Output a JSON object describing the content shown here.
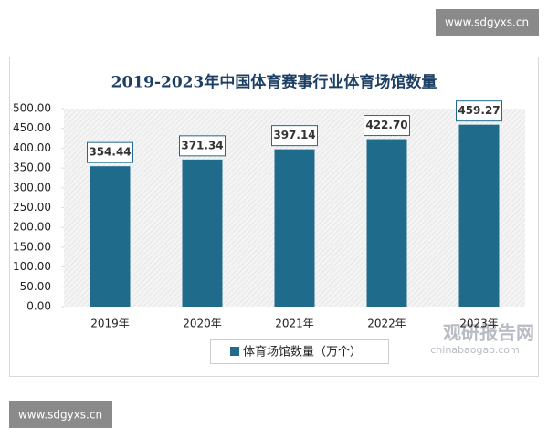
{
  "chart_data": {
    "type": "bar",
    "title": "2019-2023年中国体育赛事行业体育场馆数量",
    "categories": [
      "2019年",
      "2020年",
      "2021年",
      "2022年",
      "2023年"
    ],
    "series": [
      {
        "name": "体育场馆数量（万个）",
        "color": "#1f6b8c",
        "values": [
          354.44,
          371.34,
          397.14,
          422.7,
          459.27
        ],
        "value_labels": [
          "354.44",
          "371.34",
          "397.14",
          "422.70",
          "459.27"
        ]
      }
    ],
    "ylim": [
      0,
      500
    ],
    "yticks": [
      {
        "value": 0,
        "label": "0.00"
      },
      {
        "value": 50,
        "label": "50.00"
      },
      {
        "value": 100,
        "label": "100.00"
      },
      {
        "value": 150,
        "label": "150.00"
      },
      {
        "value": 200,
        "label": "200.00"
      },
      {
        "value": 250,
        "label": "250.00"
      },
      {
        "value": 300,
        "label": "300.00"
      },
      {
        "value": 350,
        "label": "350.00"
      },
      {
        "value": 400,
        "label": "400.00"
      },
      {
        "value": 450,
        "label": "450.00"
      },
      {
        "value": 500,
        "label": "500.00"
      }
    ],
    "legend": "bottom"
  },
  "watermarks": {
    "top": "www.sdgyxs.cn",
    "bottom": "www.sdgyxs.cn",
    "brand": "观研报告网",
    "brand_url": "chinabaogao.com"
  }
}
